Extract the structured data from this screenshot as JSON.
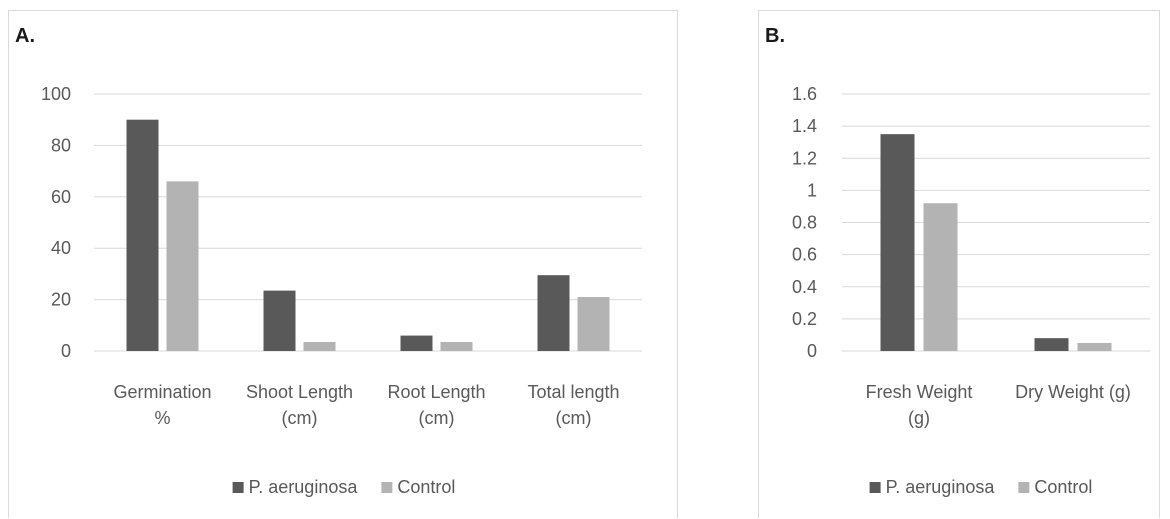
{
  "panels": {
    "a": {
      "label": "A."
    },
    "b": {
      "label": "B."
    }
  },
  "colors": {
    "p_aeruginosa": "#595959",
    "control": "#b3b3b3",
    "gridline": "#d9d9d9",
    "axis_text": "#595959"
  },
  "chart_data": [
    {
      "type": "bar",
      "panel": "A.",
      "categories": [
        "Germination %",
        "Shoot Length (cm)",
        "Root Length (cm)",
        "Total length (cm)"
      ],
      "category_lines": [
        [
          "Germination",
          "%"
        ],
        [
          "Shoot Length",
          "(cm)"
        ],
        [
          "Root Length",
          "(cm)"
        ],
        [
          "Total length",
          "(cm)"
        ]
      ],
      "series": [
        {
          "name": "P. aeruginosa",
          "color": "#595959",
          "values": [
            90,
            23.5,
            6,
            29.5
          ]
        },
        {
          "name": "Control",
          "color": "#b3b3b3",
          "values": [
            66,
            3.5,
            3.5,
            21
          ]
        }
      ],
      "ylim": [
        0,
        100
      ],
      "yticks": [
        "0",
        "20",
        "40",
        "60",
        "80",
        "100"
      ],
      "ytick_values": [
        0,
        20,
        40,
        60,
        80,
        100
      ],
      "grid": true,
      "legend": "bottom"
    },
    {
      "type": "bar",
      "panel": "B.",
      "categories": [
        "Fresh Weight (g)",
        "Dry Weight (g)"
      ],
      "category_lines": [
        [
          "Fresh Weight",
          "(g)"
        ],
        [
          "Dry Weight (g)"
        ]
      ],
      "series": [
        {
          "name": "P. aeruginosa",
          "color": "#595959",
          "values": [
            1.35,
            0.08
          ]
        },
        {
          "name": "Control",
          "color": "#b3b3b3",
          "values": [
            0.92,
            0.05
          ]
        }
      ],
      "ylim": [
        0,
        1.6
      ],
      "yticks": [
        "0",
        "0.2",
        "0.4",
        "0.6",
        "0.8",
        "1",
        "1.2",
        "1.4",
        "1.6"
      ],
      "ytick_values": [
        0,
        0.2,
        0.4,
        0.6,
        0.8,
        1,
        1.2,
        1.4,
        1.6
      ],
      "grid": true,
      "legend": "bottom"
    }
  ]
}
